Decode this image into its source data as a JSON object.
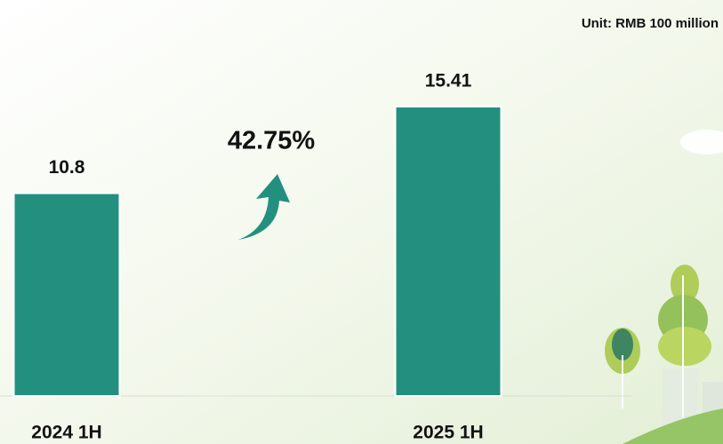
{
  "chart_data": {
    "type": "bar",
    "unit_label": "Unit: RMB 100 million",
    "annotation": "42.75%",
    "categories": [
      "2024 1H",
      "2025 1H"
    ],
    "values": [
      10.8,
      15.41
    ],
    "color": "#23907f"
  }
}
